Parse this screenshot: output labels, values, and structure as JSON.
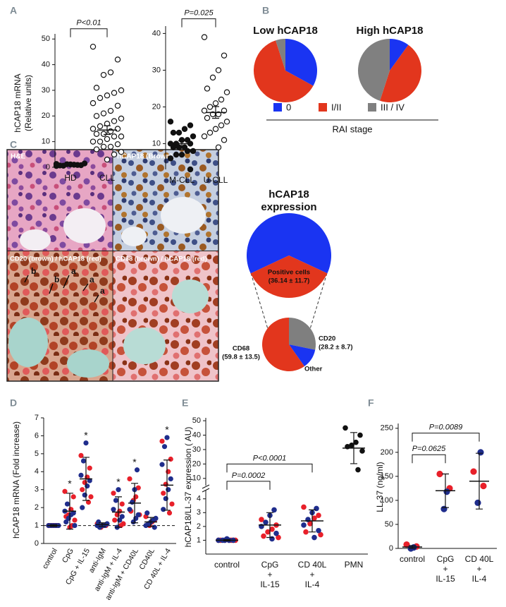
{
  "panel_labels": [
    "A",
    "B",
    "C",
    "D",
    "E",
    "F"
  ],
  "micrographs": [
    {
      "label": "H&E"
    },
    {
      "label": "hCAP18 (Brown)"
    },
    {
      "label": "CD20 (brown) / hCAP18 (red)",
      "annotations": [
        "b",
        "b",
        "a",
        "a",
        "a"
      ]
    },
    {
      "label": "CD68 (brown) / hCAP18 (red)"
    }
  ],
  "chart_data": [
    {
      "type": "dotplot",
      "ylabel": [
        "hCAP18 mRNA",
        "(Relative units)"
      ],
      "categories": [
        "HD",
        "CLL"
      ],
      "series": [
        {
          "color": "#111111",
          "values": [
            [
              0.5,
              0.8,
              1,
              1.2,
              0.7,
              1.5,
              0.9,
              1.1,
              0.6,
              1.3
            ],
            []
          ]
        },
        {
          "color": "#111111",
          "hollow": true,
          "values": [
            [],
            [
              47,
              42,
              37,
              36,
              31,
              30,
              29,
              28,
              27,
              25,
              24,
              22,
              21,
              20,
              19,
              18,
              17,
              16,
              15,
              15,
              14,
              13,
              13,
              12,
              12,
              11,
              10,
              10,
              9,
              8,
              8,
              7,
              6,
              5,
              3
            ]
          ]
        }
      ],
      "means": [
        1,
        14.5
      ],
      "errors": [
        0.2,
        1.7
      ],
      "brackets": [
        {
          "label": "P<0.01",
          "y": 54
        }
      ],
      "ylim": [
        0,
        52
      ],
      "yticks": [
        0,
        10,
        20,
        30,
        40,
        50
      ]
    },
    {
      "type": "dotplot",
      "categories": [
        "M-CLL",
        "U-CLL"
      ],
      "series": [
        {
          "color": "#111111",
          "values": [
            [
              16,
              15,
              14,
              13,
              13,
              12,
              11,
              11,
              10,
              10,
              10,
              9,
              9,
              9,
              8,
              8,
              7,
              7,
              6,
              3
            ],
            []
          ]
        },
        {
          "color": "#111111",
          "hollow": true,
          "values": [
            [],
            [
              39,
              34,
              30,
              28,
              25,
              24,
              22,
              21,
              20,
              19,
              19,
              18,
              18,
              17,
              16,
              15,
              14,
              13,
              12,
              11,
              9
            ]
          ]
        }
      ],
      "means": [
        10,
        18.5
      ],
      "errors": [
        0.8,
        1.6
      ],
      "brackets": [
        {
          "label": "P=0.025",
          "y": 44
        }
      ],
      "ylim": [
        3,
        42
      ],
      "yticks": [
        10,
        20,
        30,
        40
      ]
    },
    {
      "type": "pie",
      "title": "Low hCAP18",
      "categories": [
        "0",
        "I/II",
        "III / IV"
      ],
      "values": [
        33,
        62,
        5
      ],
      "colors": [
        "#1a34f2",
        "#e2361d",
        "#808080"
      ],
      "legend_title": "RAI stage"
    },
    {
      "type": "pie",
      "title": "High hCAP18",
      "categories": [
        "0",
        "I/II",
        "III / IV"
      ],
      "values": [
        10,
        45,
        45
      ],
      "colors": [
        "#1a34f2",
        "#e2361d",
        "#808080"
      ]
    },
    {
      "type": "pie",
      "title": [
        "hCAP18",
        "expression"
      ],
      "categories": [
        null,
        "Positive cells"
      ],
      "values": [
        63.86,
        36.14
      ],
      "value_labels": [
        null,
        "(36.14 ± 11.7)"
      ],
      "colors": [
        "#1a34f2",
        "#e2361d"
      ]
    },
    {
      "type": "pie",
      "categories": [
        "CD20",
        "Other",
        "CD68"
      ],
      "values": [
        28.2,
        12,
        59.8
      ],
      "value_labels": [
        "(28.2 ± 8.7)",
        null,
        "(59.8 ± 13.5)"
      ],
      "colors": [
        "#7f7f7f",
        "#1a34f2",
        "#e2361d"
      ]
    },
    {
      "type": "dotplot",
      "ylabel": [
        "hCAP18 mRNA (Fold increase)"
      ],
      "categories": [
        "control",
        "CpG",
        "CpG + IL-15",
        "anti-IgM",
        "anti-IgM + IL-4",
        "anti-IgM + CD40L",
        "CD40L",
        "CD 40L + IL-4"
      ],
      "series": [
        {
          "color": "#e8202a",
          "values": [
            [
              1,
              1,
              1,
              1,
              1
            ],
            [
              2.9,
              2.6,
              1.9,
              1.6,
              1.5,
              1.3,
              1.0,
              0.9
            ],
            [
              4.9,
              4.2,
              3.7,
              3.4,
              3.0,
              2.6,
              2.3
            ],
            [
              1.1,
              1.0,
              1.0,
              0.9
            ],
            [
              2.8,
              2.2,
              1.8,
              1.6,
              1.3,
              1.1,
              1.0
            ],
            [
              3.6,
              3.1,
              2.6,
              2.4,
              1.8,
              1.6
            ],
            [
              1.5,
              1.3,
              1.2,
              1.0
            ],
            [
              5.7,
              4.7,
              4.0,
              3.3,
              2.8,
              2.2,
              1.7
            ]
          ]
        },
        {
          "color": "#1f2d8c",
          "values": [
            [
              1,
              1,
              1,
              1,
              1
            ],
            [
              2.2,
              1.8,
              1.7,
              1.6,
              1.4,
              1.2,
              1.0
            ],
            [
              5.6,
              4.6,
              3.8,
              3.5,
              3.2,
              2.7,
              2.0
            ],
            [
              1.2,
              1.1,
              1.0,
              1.0,
              0.9,
              1.0
            ],
            [
              3.0,
              2.4,
              1.9,
              1.5,
              1.3,
              0.9
            ],
            [
              4.1,
              3.0,
              2.3,
              1.9,
              1.6,
              1.4,
              1.2
            ],
            [
              1.7,
              1.4,
              1.3,
              1.2,
              1.1,
              1.0,
              0.9
            ],
            [
              5.9,
              5.4,
              4.4,
              3.6,
              3.0,
              2.5,
              1.9
            ]
          ]
        }
      ],
      "means": [
        1,
        1.8,
        3.6,
        1.05,
        1.75,
        2.25,
        1.2,
        3.25
      ],
      "errors": [
        0.05,
        1.0,
        1.2,
        0.1,
        0.85,
        1.1,
        0.25,
        1.4
      ],
      "stars": [
        null,
        "*",
        "*",
        null,
        "*",
        "*",
        null,
        "*"
      ],
      "reference_line": 1,
      "ylim": [
        0,
        7
      ],
      "yticks": [
        0,
        1,
        2,
        3,
        4,
        5,
        6,
        7
      ]
    },
    {
      "type": "dotplot",
      "ylabel": [
        "hCAP18/LL-37 expression ( AU)"
      ],
      "categories": [
        [
          "control"
        ],
        [
          "CpG",
          "+",
          "IL-15"
        ],
        [
          "CD 40L",
          "+",
          "IL-4"
        ],
        [
          "PMN"
        ]
      ],
      "series": [
        {
          "color": "#e8202a",
          "values": [
            [
              1,
              1,
              1,
              1,
              1,
              1,
              1
            ],
            [
              2.5,
              2.1,
              1.8,
              1.6,
              1.3,
              1.2
            ],
            [
              3.4,
              2.8,
              2.6,
              2.2,
              1.6,
              1.4
            ],
            []
          ]
        },
        {
          "color": "#1f2d8c",
          "values": [
            [
              1.1,
              1,
              1,
              1,
              1,
              1
            ],
            [
              3.2,
              2.8,
              2.3,
              2.0,
              1.5,
              1.1
            ],
            [
              3.3,
              3.0,
              2.5,
              2.1,
              1.7,
              1.2
            ],
            []
          ]
        },
        {
          "color": "#111111",
          "values": [
            [],
            [],
            [],
            [
              45,
              40,
              35,
              33,
              32,
              29,
              16
            ]
          ]
        }
      ],
      "means": [
        1,
        2.1,
        2.4,
        31
      ],
      "errors": [
        0.05,
        0.9,
        0.8,
        10.8
      ],
      "brackets": [
        {
          "label": "P=0.0002",
          "y": 8
        },
        {
          "label": "P<0.0001",
          "y": 20
        }
      ],
      "ylim": [
        0,
        4.6
      ],
      "yticks": [
        1,
        2,
        3,
        4
      ],
      "ylim_upper": [
        5,
        52
      ],
      "yticks_upper": [
        10,
        20,
        30,
        40,
        50
      ]
    },
    {
      "type": "dotplot",
      "ylabel": [
        "LL-37 (ng/ml)"
      ],
      "categories": [
        [
          "control"
        ],
        [
          "CpG",
          "+",
          "IL-15"
        ],
        [
          "CD 40L",
          "+",
          "IL-4"
        ]
      ],
      "series": [
        {
          "color": "#e8202a",
          "values": [
            [
              8,
              4
            ],
            [
              155,
              125
            ],
            [
              160,
              130
            ]
          ]
        },
        {
          "color": "#1f2d8c",
          "values": [
            [
              2,
              0
            ],
            [
              118,
              82
            ],
            [
              200,
              95
            ]
          ]
        }
      ],
      "means": [
        3,
        120,
        140
      ],
      "errors": [
        3,
        35,
        58
      ],
      "brackets": [
        {
          "label": "P=0.0625",
          "y": 195
        },
        {
          "label": "P=0.0089",
          "y": 240
        }
      ],
      "ylim": [
        0,
        260
      ],
      "yticks": [
        0,
        50,
        100,
        150,
        200,
        250
      ]
    }
  ]
}
